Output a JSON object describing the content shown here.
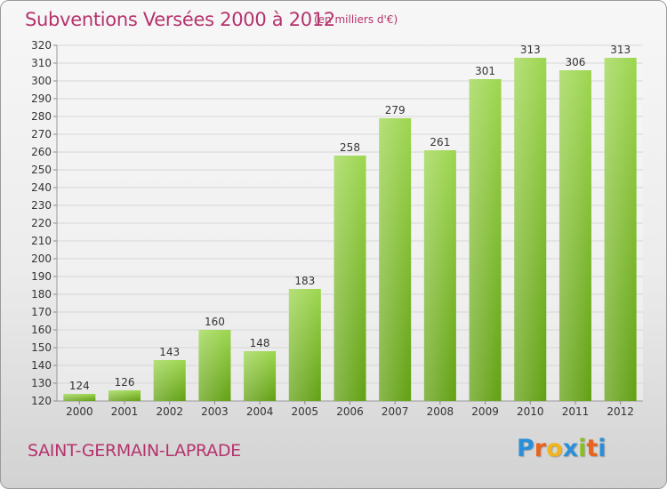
{
  "title": "Subventions Versées 2000 à 2012",
  "unit_note": "(en milliers d'€)",
  "commune": "SAINT-GERMAIN-LAPRADE",
  "brand": {
    "letters": [
      "P",
      "r",
      "o",
      "x",
      "i",
      "t",
      "i"
    ],
    "colors": [
      "#2a8fd8",
      "#e8631c",
      "#f0b41c",
      "#2a8fd8",
      "#86c11f",
      "#e8631c",
      "#2a8fd8"
    ]
  },
  "colors": {
    "title": "#b5336d",
    "bar_light": "#9dd64f",
    "bar_dark": "#62a013",
    "grid": "#d6d6d6",
    "axis_text": "#333333"
  },
  "chart_data": {
    "type": "bar",
    "categories": [
      "2000",
      "2001",
      "2002",
      "2003",
      "2004",
      "2005",
      "2006",
      "2007",
      "2008",
      "2009",
      "2010",
      "2011",
      "2012"
    ],
    "values": [
      124,
      126,
      143,
      160,
      148,
      183,
      258,
      279,
      261,
      301,
      313,
      306,
      313
    ],
    "title": "Subventions Versées 2000 à 2012",
    "ylabel": "(en milliers d'€)",
    "ylim": [
      120,
      320
    ],
    "ytick_step": 10,
    "grid": true,
    "data_labels": true
  }
}
